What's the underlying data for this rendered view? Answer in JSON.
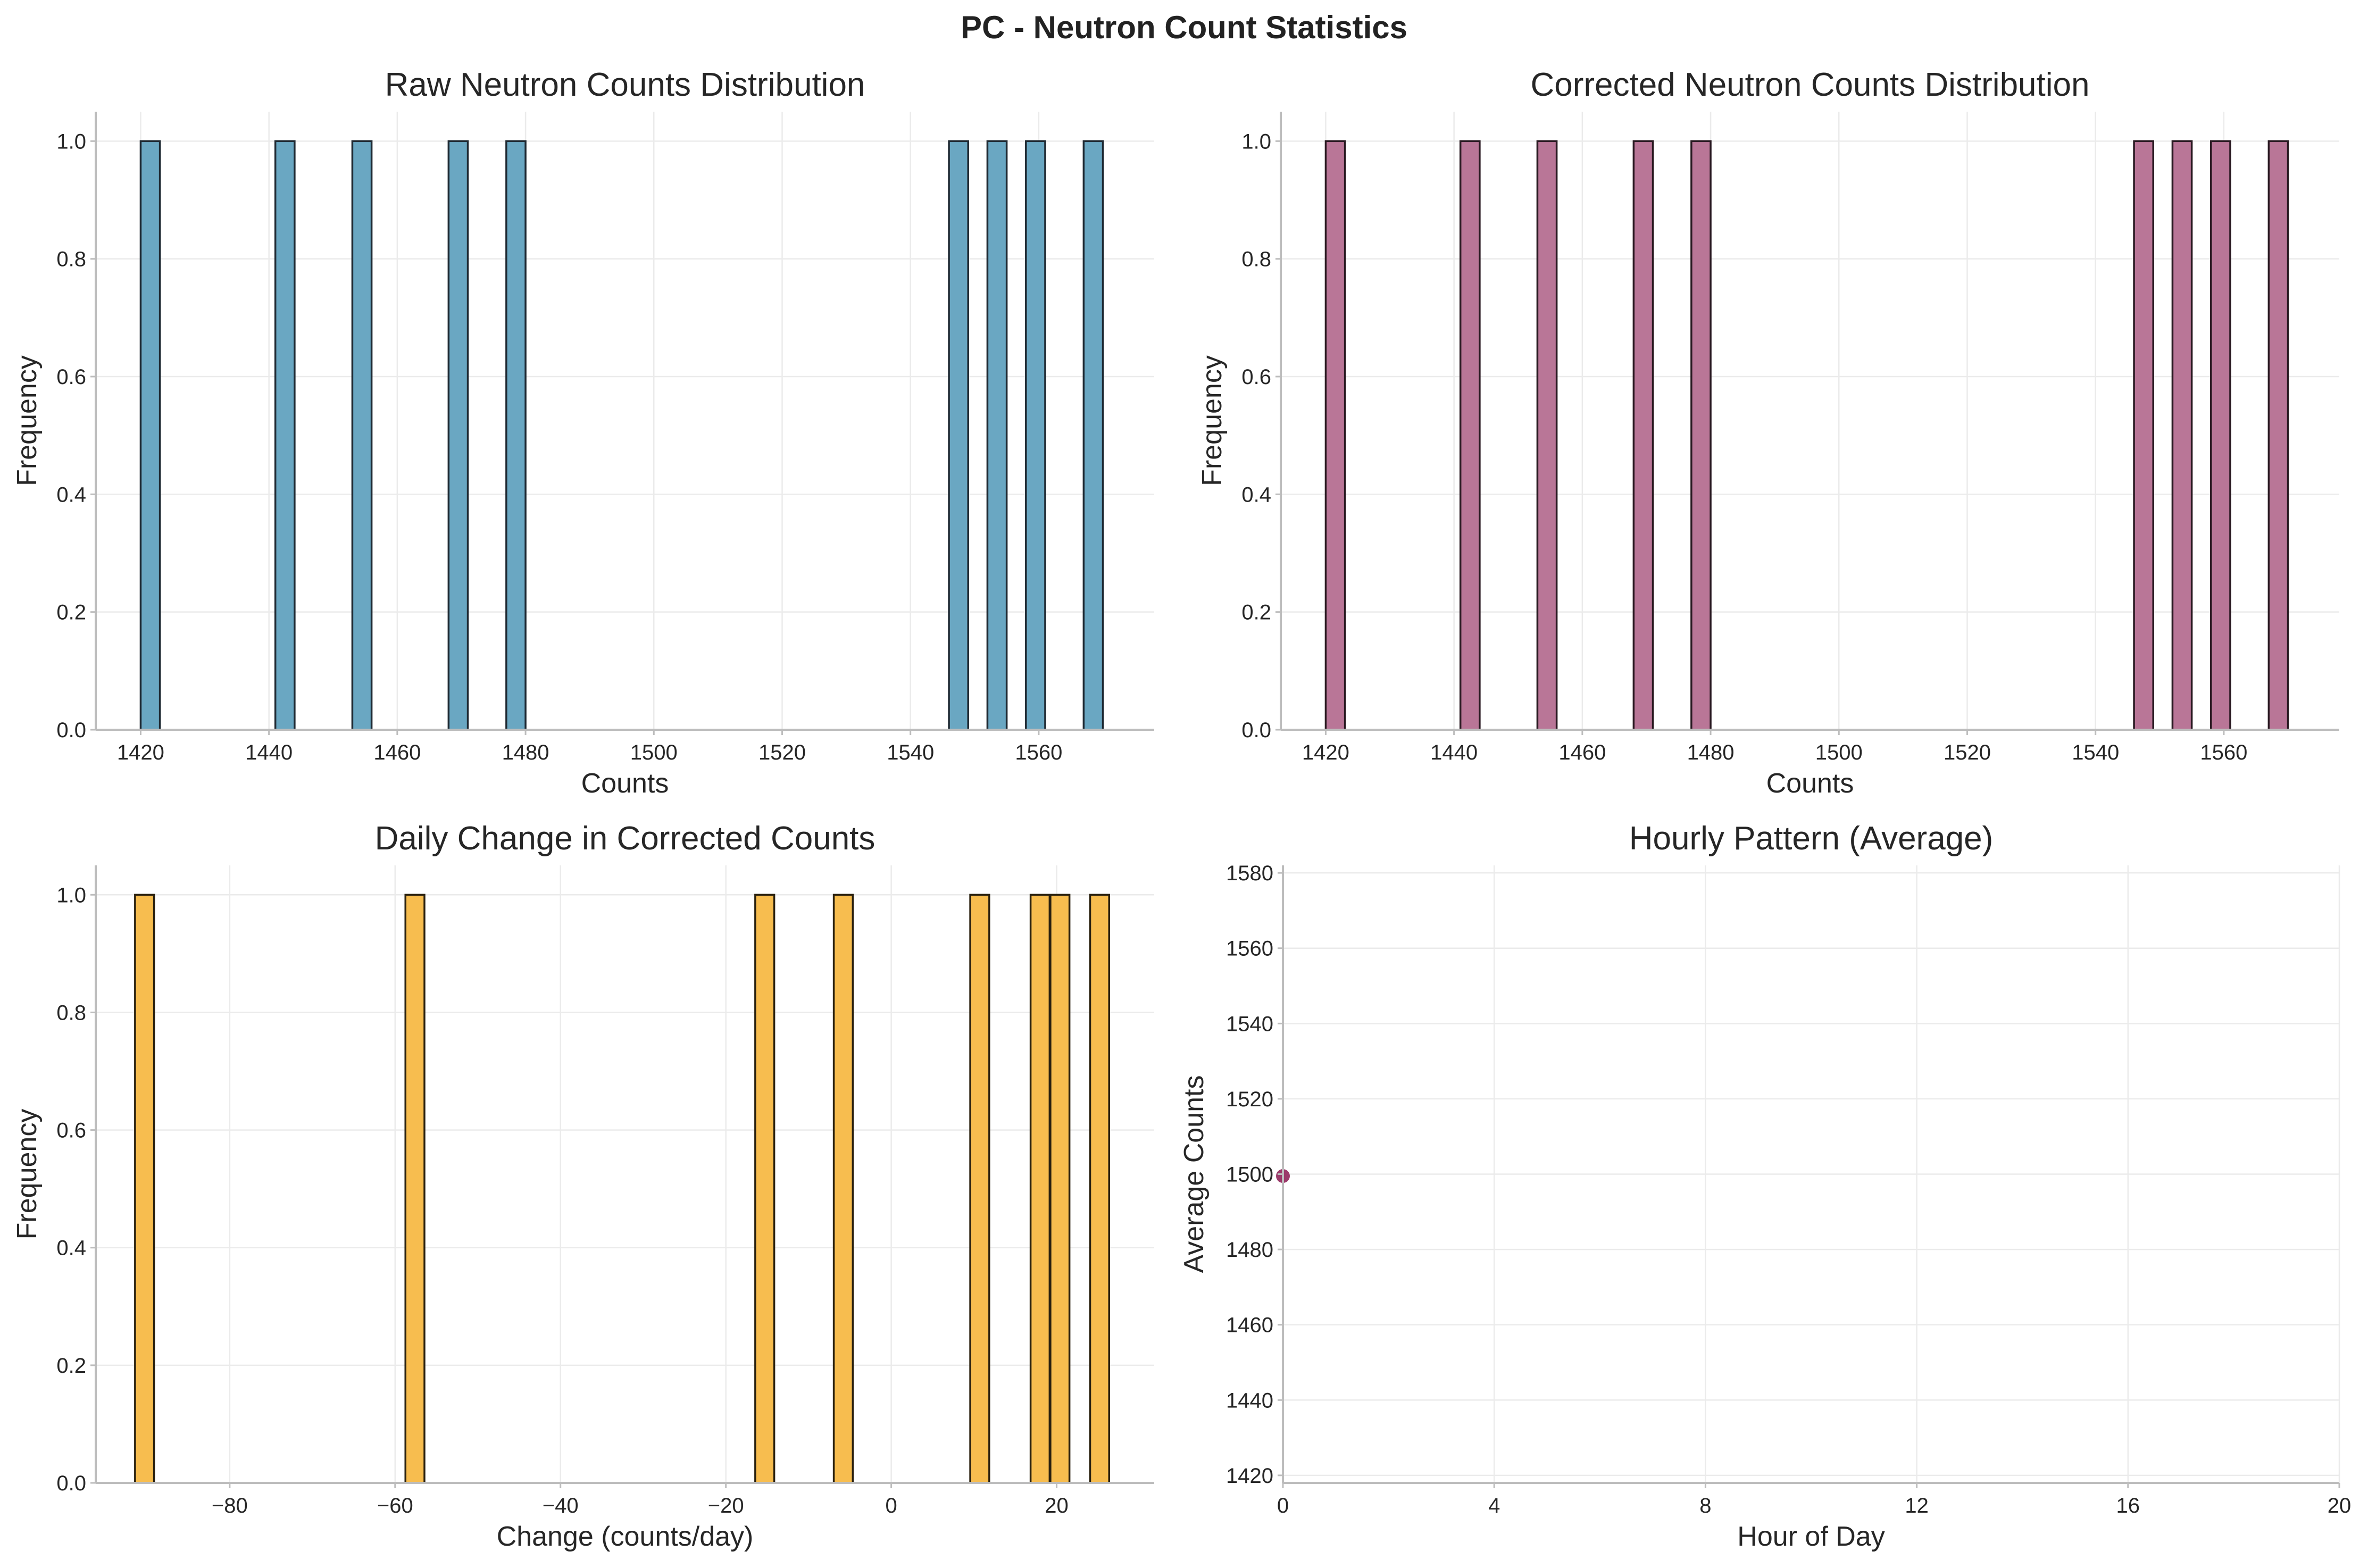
{
  "figure": {
    "suptitle": "PC - Neutron Count Statistics"
  },
  "chart_data": [
    {
      "id": "raw",
      "type": "bar",
      "title": "Raw Neutron Counts Distribution",
      "xlabel": "Counts",
      "ylabel": "Frequency",
      "color": "#6aa7c2",
      "edgecolor": "#1f2a33",
      "xlim": [
        1413,
        1578
      ],
      "ylim": [
        0,
        1.05
      ],
      "xticks": [
        1420,
        1440,
        1460,
        1480,
        1500,
        1520,
        1540,
        1560
      ],
      "yticks": [
        "0.0",
        "0.2",
        "0.4",
        "0.6",
        "0.8",
        "1.0"
      ],
      "yvals": [
        0,
        0.2,
        0.4,
        0.6,
        0.8,
        1.0
      ],
      "bin_width": 3,
      "bins": [
        {
          "x": 1421.5,
          "count": 1
        },
        {
          "x": 1442.5,
          "count": 1
        },
        {
          "x": 1454.5,
          "count": 1
        },
        {
          "x": 1469.5,
          "count": 1
        },
        {
          "x": 1478.5,
          "count": 1
        },
        {
          "x": 1547.5,
          "count": 1
        },
        {
          "x": 1553.5,
          "count": 1
        },
        {
          "x": 1559.5,
          "count": 1
        },
        {
          "x": 1568.5,
          "count": 1
        }
      ]
    },
    {
      "id": "corrected",
      "type": "bar",
      "title": "Corrected Neutron Counts Distribution",
      "xlabel": "Counts",
      "ylabel": "Frequency",
      "color": "#b97697",
      "edgecolor": "#2a1a22",
      "xlim": [
        1413,
        1578
      ],
      "ylim": [
        0,
        1.05
      ],
      "xticks": [
        1420,
        1440,
        1460,
        1480,
        1500,
        1520,
        1540,
        1560
      ],
      "yticks": [
        "0.0",
        "0.2",
        "0.4",
        "0.6",
        "0.8",
        "1.0"
      ],
      "yvals": [
        0,
        0.2,
        0.4,
        0.6,
        0.8,
        1.0
      ],
      "bin_width": 3,
      "bins": [
        {
          "x": 1421.5,
          "count": 1
        },
        {
          "x": 1442.5,
          "count": 1
        },
        {
          "x": 1454.5,
          "count": 1
        },
        {
          "x": 1469.5,
          "count": 1
        },
        {
          "x": 1478.5,
          "count": 1
        },
        {
          "x": 1547.5,
          "count": 1
        },
        {
          "x": 1553.5,
          "count": 1
        },
        {
          "x": 1559.5,
          "count": 1
        },
        {
          "x": 1568.5,
          "count": 1
        }
      ]
    },
    {
      "id": "daily",
      "type": "bar",
      "title": "Daily Change in Corrected Counts",
      "xlabel": "Change (counts/day)",
      "ylabel": "Frequency",
      "color": "#f7bd4f",
      "edgecolor": "#2b2210",
      "xlim": [
        -96.2,
        31.8
      ],
      "ylim": [
        0,
        1.05
      ],
      "xticks": [
        -80,
        -60,
        -40,
        -20,
        0,
        20
      ],
      "xticklabels": [
        "−80",
        "−60",
        "−40",
        "−20",
        "0",
        "20"
      ],
      "yticks": [
        "0.0",
        "0.2",
        "0.4",
        "0.6",
        "0.8",
        "1.0"
      ],
      "yvals": [
        0,
        0.2,
        0.4,
        0.6,
        0.8,
        1.0
      ],
      "bin_width": 2.3,
      "bins": [
        {
          "x": -90.3,
          "count": 1
        },
        {
          "x": -57.6,
          "count": 1
        },
        {
          "x": -15.3,
          "count": 1
        },
        {
          "x": -5.8,
          "count": 1
        },
        {
          "x": 10.7,
          "count": 1
        },
        {
          "x": 18.0,
          "count": 1
        },
        {
          "x": 20.4,
          "count": 1
        },
        {
          "x": 25.2,
          "count": 1
        }
      ]
    },
    {
      "id": "hourly",
      "type": "scatter",
      "title": "Hourly Pattern (Average)",
      "xlabel": "Hour of Day",
      "ylabel": "Average Counts",
      "color": "#9b3b6b",
      "xlim": [
        0,
        20
      ],
      "ylim": [
        1418,
        1582
      ],
      "xticks": [
        0,
        4,
        8,
        12,
        16,
        20
      ],
      "yticks": [
        1420,
        1440,
        1460,
        1480,
        1500,
        1520,
        1540,
        1560,
        1580
      ],
      "points": [
        {
          "x": 0,
          "y": 1499.5
        }
      ]
    }
  ]
}
